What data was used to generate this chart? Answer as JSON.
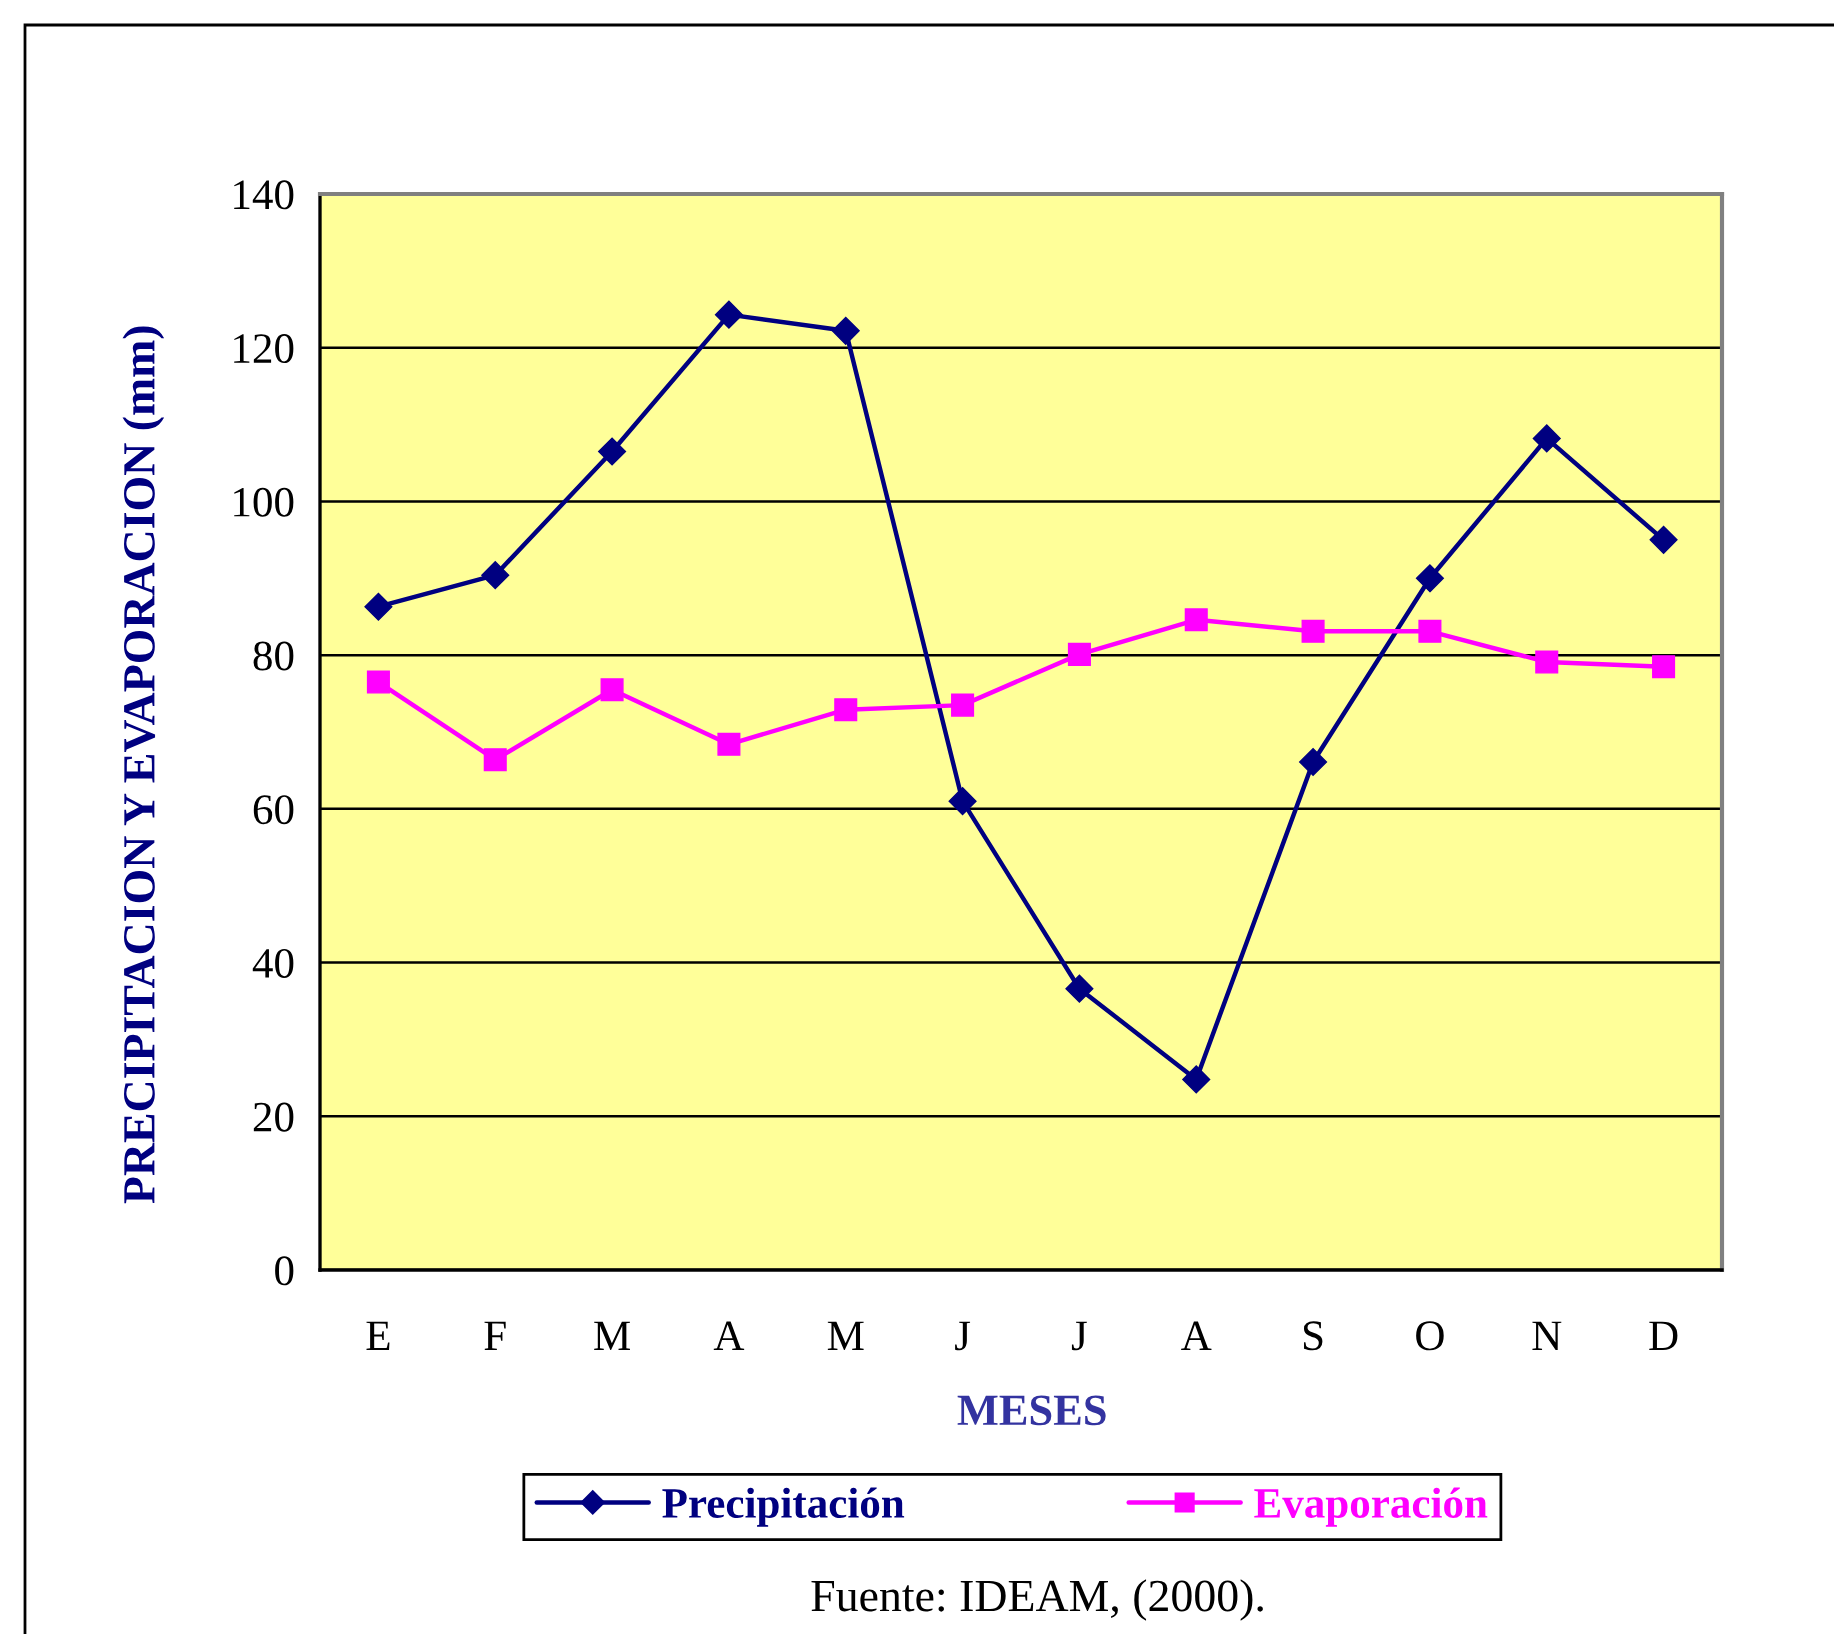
{
  "chart_data": {
    "type": "line",
    "xlabel": "MESES",
    "ylabel": "PRECIPITACION Y EVAPORACION (mm)",
    "categories": [
      "E",
      "F",
      "M",
      "A",
      "M",
      "J",
      "J",
      "A",
      "S",
      "O",
      "N",
      "D"
    ],
    "series": [
      {
        "name": "Precipitación",
        "color": "#000080",
        "marker": "diamond",
        "values": [
          86.3,
          90.4,
          106.5,
          124.3,
          122.2,
          61.0,
          36.6,
          24.8,
          66.1,
          90.0,
          108.2,
          95.0
        ]
      },
      {
        "name": "Evaporación",
        "color": "#ff00ff",
        "marker": "square",
        "values": [
          76.5,
          66.4,
          75.5,
          68.4,
          72.9,
          73.5,
          80.1,
          84.6,
          83.1,
          83.1,
          79.1,
          78.5
        ]
      }
    ],
    "ylim": [
      0,
      140
    ],
    "yticks": [
      0,
      20,
      40,
      60,
      80,
      100,
      120,
      140
    ],
    "grid": "y",
    "legend": "bottom",
    "line_style": "solid",
    "annotations": [
      "Fuente: IDEAM, (2000)."
    ]
  }
}
